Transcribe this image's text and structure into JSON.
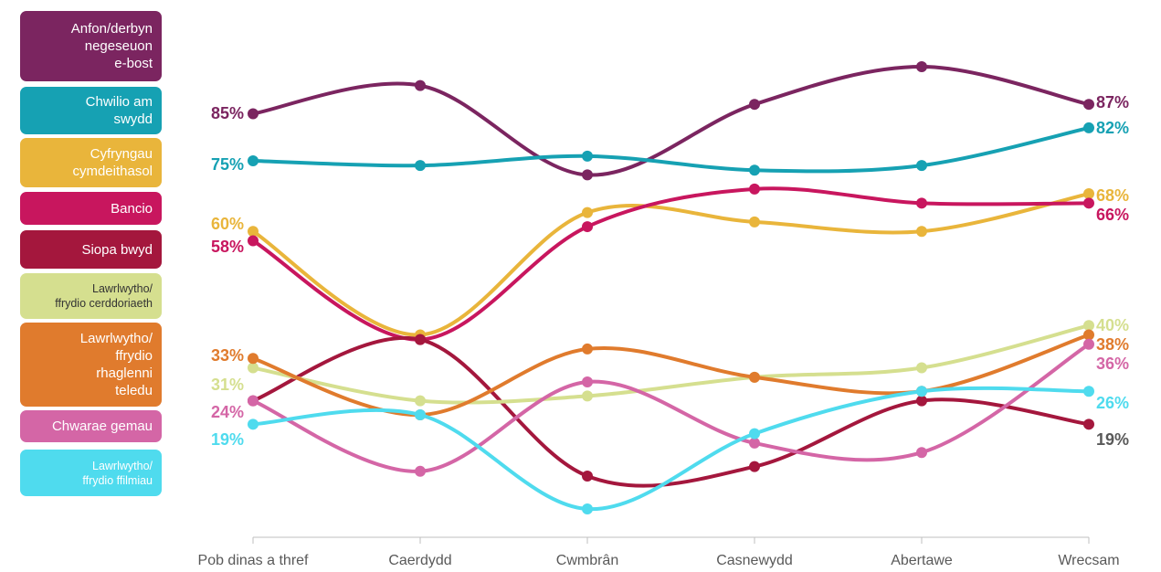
{
  "chart_data": {
    "type": "line",
    "categories": [
      "Pob dinas a thref",
      "Caerdydd",
      "Cwmbrân",
      "Casnewydd",
      "Abertawe",
      "Wrecsam"
    ],
    "grid": false,
    "legend_placement": "left",
    "series": [
      {
        "name": "Anfon/derbyn\nnegeseuon\ne-bost",
        "color": "#7b2560",
        "values": [
          85,
          91,
          72,
          87,
          95,
          87
        ],
        "first_label": "85%",
        "last_label": "87%"
      },
      {
        "name": "Chwilio am\nswydd",
        "color": "#16a1b3",
        "values": [
          75,
          74,
          76,
          73,
          74,
          82
        ],
        "first_label": "75%",
        "last_label": "82%"
      },
      {
        "name": "Cyfryngau\ncymdeithasol",
        "color": "#e9b53b",
        "values": [
          60,
          38,
          64,
          62,
          60,
          68
        ],
        "first_label": "60%",
        "last_label": "68%"
      },
      {
        "name": "Bancio",
        "color": "#c8165e",
        "values": [
          58,
          37,
          61,
          69,
          66,
          66
        ],
        "first_label": "58%",
        "last_label": "66%"
      },
      {
        "name": "Siopa bwyd",
        "color": "#a4173d",
        "values": [
          24,
          37,
          8,
          10,
          24,
          19
        ],
        "first_label": "",
        "last_label": "19%"
      },
      {
        "name": "Lawrlwytho/\nffrydio cerddoriaeth",
        "color": "#d5df8f",
        "values": [
          31,
          24,
          25,
          29,
          31,
          40
        ],
        "first_label": "31%",
        "last_label": "40%"
      },
      {
        "name": "Lawrlwytho/\nffrydio\nrhaglenni\nteledu",
        "color": "#e07b2d",
        "values": [
          33,
          21,
          35,
          29,
          26,
          38
        ],
        "first_label": "33%",
        "last_label": "38%"
      },
      {
        "name": "Chwarae gemau",
        "color": "#d466a6",
        "values": [
          24,
          9,
          28,
          15,
          13,
          36
        ],
        "first_label": "24%",
        "last_label": "36%"
      },
      {
        "name": "Lawrlwytho/\nffrydio ffilmiau",
        "color": "#4fdbee",
        "values": [
          19,
          21,
          1,
          17,
          26,
          26
        ],
        "first_label": "19%",
        "last_label": "26%"
      }
    ]
  }
}
